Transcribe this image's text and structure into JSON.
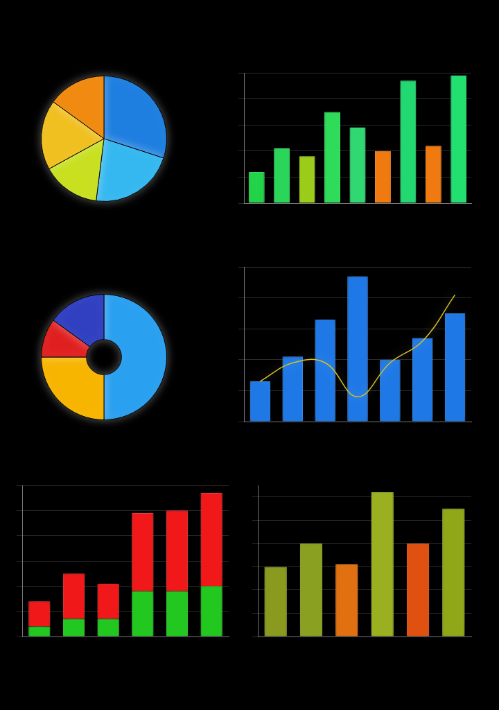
{
  "chart_data": [
    {
      "type": "pie",
      "values": [
        30,
        22,
        15,
        18,
        15
      ],
      "colors": [
        "#1e7fe0",
        "#35b8f0",
        "#c8e020",
        "#f0c020",
        "#f08a10"
      ]
    },
    {
      "type": "bar",
      "categories": [
        null,
        null,
        null,
        null,
        null,
        null,
        null,
        null,
        null
      ],
      "values": [
        1.2,
        2.1,
        1.8,
        3.5,
        2.9,
        2.0,
        4.7,
        2.2,
        4.9
      ],
      "colors": [
        "#22d34a",
        "#2ad65a",
        "#9ccc1a",
        "#2fdc5a",
        "#2fd870",
        "#f07a10",
        "#22d870",
        "#f07a10",
        "#22e070"
      ],
      "ylim": [
        0,
        5
      ],
      "yticks": [
        0,
        1,
        2,
        3,
        4,
        5
      ],
      "grid": true,
      "tick_labels": false
    },
    {
      "type": "doughnut",
      "values": [
        50,
        25,
        10,
        15
      ],
      "colors": [
        "#2aa0f0",
        "#f7b500",
        "#e02020",
        "#3040c0"
      ]
    },
    {
      "type": "bar",
      "categories": [
        null,
        null,
        null,
        null,
        null,
        null,
        null
      ],
      "series": [
        {
          "type": "bar",
          "color": "#1e78e6",
          "values": [
            1.3,
            2.1,
            3.3,
            4.7,
            2.0,
            2.7,
            3.5
          ]
        },
        {
          "type": "line",
          "color": "#d8c020",
          "values": [
            1.3,
            1.9,
            1.9,
            0.8,
            1.9,
            2.6,
            4.1
          ]
        }
      ],
      "ylim": [
        0,
        5
      ],
      "yticks": [
        0,
        1,
        2,
        3,
        4,
        5
      ],
      "grid": true,
      "tick_labels": false
    },
    {
      "type": "bar",
      "categories": [
        null,
        null,
        null,
        null,
        null,
        null
      ],
      "series": [
        {
          "color": "#22c820",
          "values": [
            0.4,
            0.7,
            0.7,
            1.8,
            1.8,
            2.0
          ]
        },
        {
          "color": "#f01818",
          "values": [
            1.0,
            1.8,
            1.4,
            3.1,
            3.2,
            3.7
          ]
        }
      ],
      "stacked": true,
      "ylim": [
        0,
        6
      ],
      "yticks": [
        0,
        1,
        2,
        3,
        4,
        5,
        6
      ],
      "grid": true,
      "tick_labels": false
    },
    {
      "type": "bar",
      "categories": [
        null,
        null,
        null,
        null,
        null,
        null
      ],
      "values": [
        3.0,
        4.0,
        3.1,
        6.2,
        4.0,
        5.5
      ],
      "colors": [
        "#8a9a1e",
        "#8aa020",
        "#e07010",
        "#9ab020",
        "#e05010",
        "#90a818"
      ],
      "ylim": [
        0,
        6.5
      ],
      "yticks": [
        0,
        1,
        2,
        3,
        4,
        5,
        6
      ],
      "grid": true,
      "tick_labels": false
    }
  ]
}
